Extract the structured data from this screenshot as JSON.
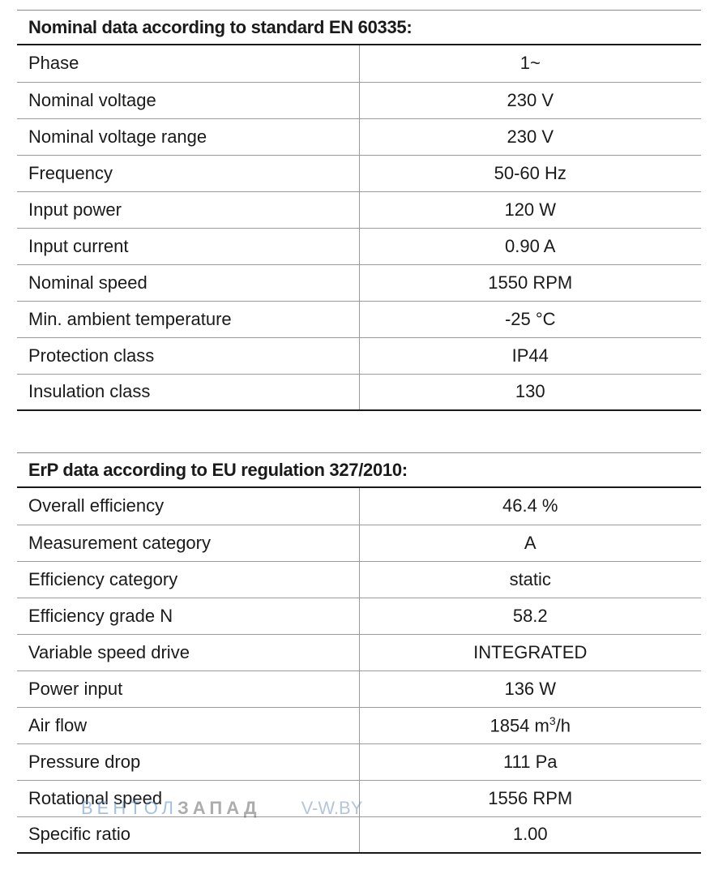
{
  "nominal": {
    "title": "Nominal data according to standard EN 60335:",
    "rows": [
      {
        "label": "Phase",
        "value": "1~"
      },
      {
        "label": "Nominal voltage",
        "value": "230 V"
      },
      {
        "label": "Nominal voltage range",
        "value": "230 V"
      },
      {
        "label": "Frequency",
        "value": "50-60 Hz"
      },
      {
        "label": "Input power",
        "value": "120 W"
      },
      {
        "label": "Input current",
        "value": "0.90 A"
      },
      {
        "label": "Nominal speed",
        "value": "1550 RPM"
      },
      {
        "label": "Min. ambient temperature",
        "value": "-25 °C"
      },
      {
        "label": "Protection class",
        "value": "IP44"
      },
      {
        "label": "Insulation class",
        "value": "130"
      }
    ]
  },
  "erp": {
    "title": "ErP data according to EU regulation 327/2010:",
    "rows": [
      {
        "label": "Overall efficiency",
        "value": "46.4 %"
      },
      {
        "label": "Measurement category",
        "value": "A"
      },
      {
        "label": "Efficiency category",
        "value": "static"
      },
      {
        "label": "Efficiency grade N",
        "value": "58.2"
      },
      {
        "label": "Variable speed drive",
        "value": "INTEGRATED"
      },
      {
        "label": "Power input",
        "value": "136 W"
      },
      {
        "label": "Air flow",
        "value": "1854 m",
        "value_sup": "3",
        "value_suffix": "/h"
      },
      {
        "label": "Pressure drop",
        "value": "111 Pa"
      },
      {
        "label": "Rotational speed",
        "value": "1556 RPM"
      },
      {
        "label": "Specific ratio",
        "value": "1.00"
      }
    ]
  },
  "watermark": {
    "part1": "ВЕНТ",
    "part2": "ОЛ",
    "part3": "ЗАПАД",
    "site": "V-W.BY"
  }
}
